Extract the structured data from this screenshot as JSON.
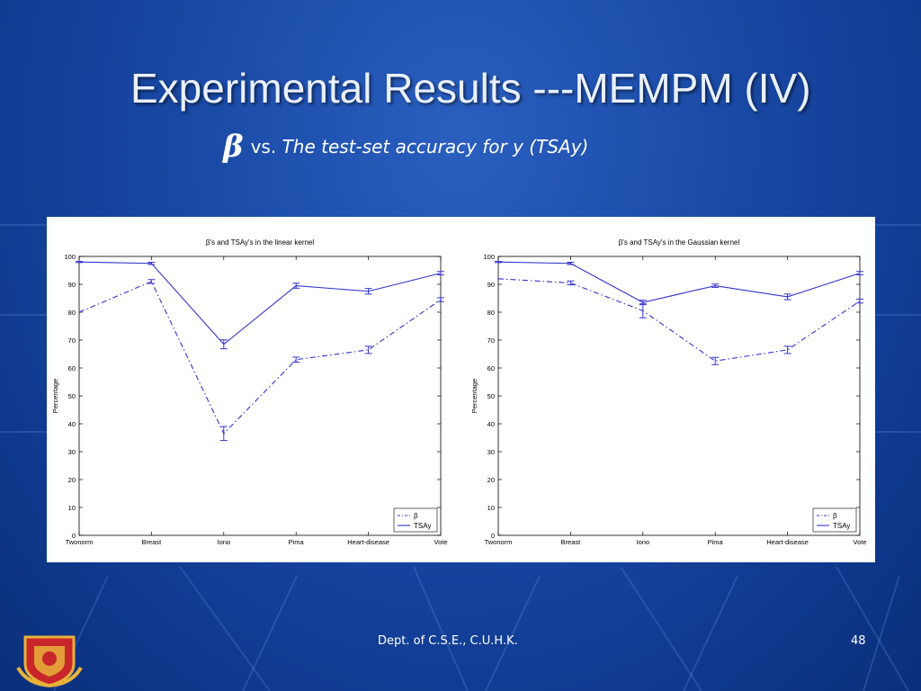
{
  "slide": {
    "title": "Experimental Results ---MEMPM (IV)",
    "subtitle_symbol": "β",
    "subtitle_vs": "vs.",
    "subtitle_text": "The test-set accuracy for y (TSAy)",
    "footer": "Dept. of C.S.E., C.U.H.K.",
    "page_number": "48",
    "colors": {
      "background": "#1a4aa6",
      "title": "#e9f0ff",
      "series": "#3333cc"
    }
  },
  "chart_data": [
    {
      "type": "line",
      "title": "β's and TSAy's in the linear kernel",
      "ylabel": "Percentage",
      "xlabel": "",
      "categories": [
        "Twonorm",
        "Breast",
        "Iono",
        "Pima",
        "Heart-disease",
        "Vote"
      ],
      "ylim": [
        0,
        100
      ],
      "yticks": [
        0,
        10,
        20,
        30,
        40,
        50,
        60,
        70,
        80,
        90,
        100
      ],
      "grid": false,
      "legend": "bottom-right",
      "series": [
        {
          "name": "β",
          "style": "dash-dot",
          "values": [
            80,
            91,
            36.5,
            63,
            66.5,
            84.5
          ],
          "errors": [
            0,
            0.7,
            2.5,
            0.9,
            1.3,
            0.7
          ]
        },
        {
          "name": "TSAy",
          "style": "solid",
          "values": [
            98,
            97.5,
            68.5,
            89.5,
            87.5,
            94
          ],
          "errors": [
            0.2,
            0.4,
            1.6,
            0.9,
            1.0,
            0.6
          ]
        }
      ]
    },
    {
      "type": "line",
      "title": "β's and TSAy's in the Gaussian kernel",
      "ylabel": "Percentage",
      "xlabel": "",
      "categories": [
        "Twonorm",
        "Breast",
        "Iono",
        "Pima",
        "Heart-disease",
        "Vote"
      ],
      "ylim": [
        0,
        100
      ],
      "yticks": [
        0,
        10,
        20,
        30,
        40,
        50,
        60,
        70,
        80,
        90,
        100
      ],
      "grid": false,
      "legend": "bottom-right",
      "series": [
        {
          "name": "β",
          "style": "dash-dot",
          "values": [
            92,
            90.5,
            80.5,
            62.5,
            66.5,
            84
          ],
          "errors": [
            0,
            0.7,
            2.5,
            1.3,
            1.3,
            0.7
          ]
        },
        {
          "name": "TSAy",
          "style": "solid",
          "values": [
            98,
            97.5,
            83.5,
            89.5,
            85.5,
            94
          ],
          "errors": [
            0.2,
            0.4,
            0.8,
            0.6,
            1.0,
            0.6
          ]
        }
      ]
    }
  ]
}
